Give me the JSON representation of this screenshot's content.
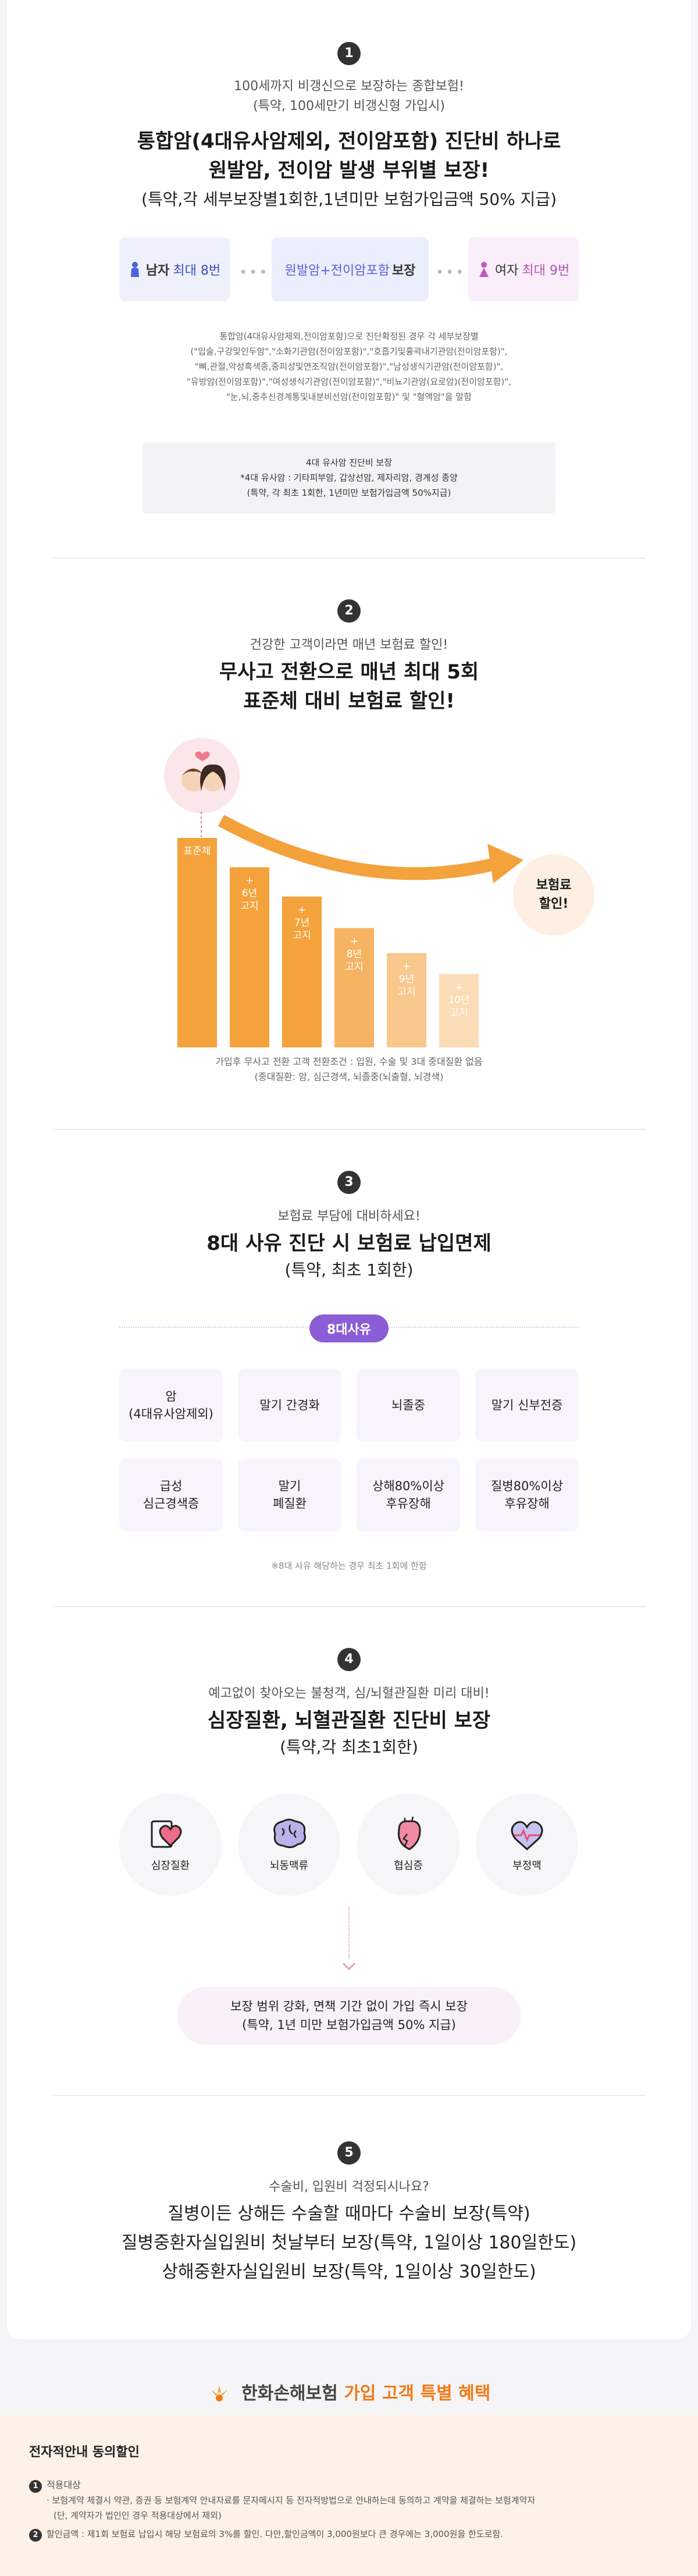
{
  "s1": {
    "num": "1",
    "sub1": "100세까지 비갱신으로 보장하는 종합보험!",
    "sub2": "(특약, 100세만기 비갱신형 가입시)",
    "title1": "통합암(4대유사암제외, 전이암포함) 진단비 하나로",
    "title2": "원발암, 전이암 발생 부위별 보장!",
    "detail": "(특약,각 세부보장별1회한,1년미만 보험가입금액 50% 지급)",
    "male_label": "남자",
    "male_count": "최대 8번",
    "mid_label": "원발암+전이암포함",
    "mid_suffix": "보장",
    "female_label": "여자",
    "female_count": "최대 9번",
    "notes": [
      "통합암(4대유사암제외,전이암포함)으로 진단확정된 경우 각 세부보장별",
      "(\"입술,구강및인두암\",\"소화기관암(전이암포함)\",\"호흡기및흉곽내기관암(전이암포함)\",",
      "\"뼈,관절,악성흑색종,중피성및연조직암(전이암포함)\",\"남성생식기관암(전이암포함)\",",
      "\"유방암(전이암포함)\",\"여성생식기관암(전이암포함)\",\"비뇨기관암(요로암)(전이암포함)\",",
      "\"눈,뇌,중추신경계통및내분비선암(전이암포함)\" 및 \"혈액암\"을 말함"
    ],
    "box": [
      "4대 유사암 진단비 보장",
      "*4대 유사암 : 기타피부암, 갑상선암, 제자리암, 경계성 종양",
      "(특약, 각 최초 1회한, 1년미만 보험가입금액 50%지급)"
    ]
  },
  "s2": {
    "num": "2",
    "sub": "건강한 고객이라면 매년 보험료 할인!",
    "title1": "무사고 전환으로 매년 최대 5회",
    "title2": "표준체 대비 보험료 할인!",
    "bubble": [
      "보험료",
      "할인!"
    ],
    "note1": "가입후 무사고 전환 고객 전환조건 : 입원, 수술 및 3대 중대질환 없음",
    "note2": "(중대질환: 암, 심근경색, 뇌졸중(뇌출혈, 뇌경색)"
  },
  "chart_data": {
    "type": "bar",
    "categories": [
      "표준체",
      "6년 고지",
      "7년 고지",
      "8년 고지",
      "9년 고지",
      "10년 고지"
    ],
    "bar_labels": [
      [
        "표준체"
      ],
      [
        "+",
        "6년",
        "고지"
      ],
      [
        "+",
        "7년",
        "고지"
      ],
      [
        "+",
        "8년",
        "고지"
      ],
      [
        "+",
        "9년",
        "고지"
      ],
      [
        "+",
        "10년",
        "고지"
      ]
    ],
    "values": [
      100,
      86,
      72,
      57,
      45,
      35
    ],
    "colors": [
      "#f4a23b",
      "#f4a23b",
      "#f4a23b",
      "#f6b462",
      "#f8c88c",
      "#fbdcb6"
    ]
  },
  "s3": {
    "num": "3",
    "sub": "보험료 부담에 대비하세요!",
    "title1": "8대 사유 진단 시 보험료 납입면제",
    "title2": "(특약, 최초 1회한)",
    "tag": "8대사유",
    "items": [
      [
        "암",
        "(4대유사암제외)"
      ],
      [
        "말기 간경화"
      ],
      [
        "뇌졸중"
      ],
      [
        "말기 신부전증"
      ],
      [
        "급성",
        "심근경색증"
      ],
      [
        "말기",
        "폐질환"
      ],
      [
        "상해80%이상",
        "후유장해"
      ],
      [
        "질병80%이상",
        "후유장해"
      ]
    ],
    "note": "※8대 사유 해당하는 경우 최초 1회에 한함"
  },
  "s4": {
    "num": "4",
    "sub": "예고없이 찾아오는 불청객, 심/뇌혈관질환 미리 대비!",
    "title1": "심장질환, 뇌혈관질환 진단비 보장",
    "title2": "(특약,각 최초1회한)",
    "circles": [
      "심장질환",
      "뇌동맥류",
      "협심증",
      "부정맥"
    ],
    "box1": "보장 범위 강화, 면책 기간 없이 가입 즉시 보장",
    "box2": "(특약, 1년 미만 보험가입금액 50% 지급)"
  },
  "s5": {
    "num": "5",
    "sub": "수술비, 입원비 걱정되시나요?",
    "line1": "질병이든 상해든 수술할 때마다 수술비 보장(특약)",
    "line2": "질병중환자실입원비 첫날부터 보장(특약, 1일이상 180일한도)",
    "line3": "상해중환자실입원비 보장(특약, 1일이상 30일한도)"
  },
  "brand": {
    "name": "한화손해보험",
    "highlight": "가입 고객 특별 혜택"
  },
  "consent": {
    "title": "전자적안내 동의할인",
    "n1": "1",
    "l1": "적용대상",
    "l1a": "· 보험계약 체결시 약관, 증권 등 보험계약 안내자료를 문자메시지 등 전자적방법으로 안내하는데 동의하고 계약을 체결하는 보험계약자",
    "l1b": "(단, 계약자가 법인인 경우 적용대상에서 제외)",
    "n2": "2",
    "l2": "할인금액 : 제1회 보험료 납입시 해당 보험료의 3%를 할인. 다만,할인금액이 3,000원보다 큰 경우에는 3,000원을 한도로함."
  }
}
